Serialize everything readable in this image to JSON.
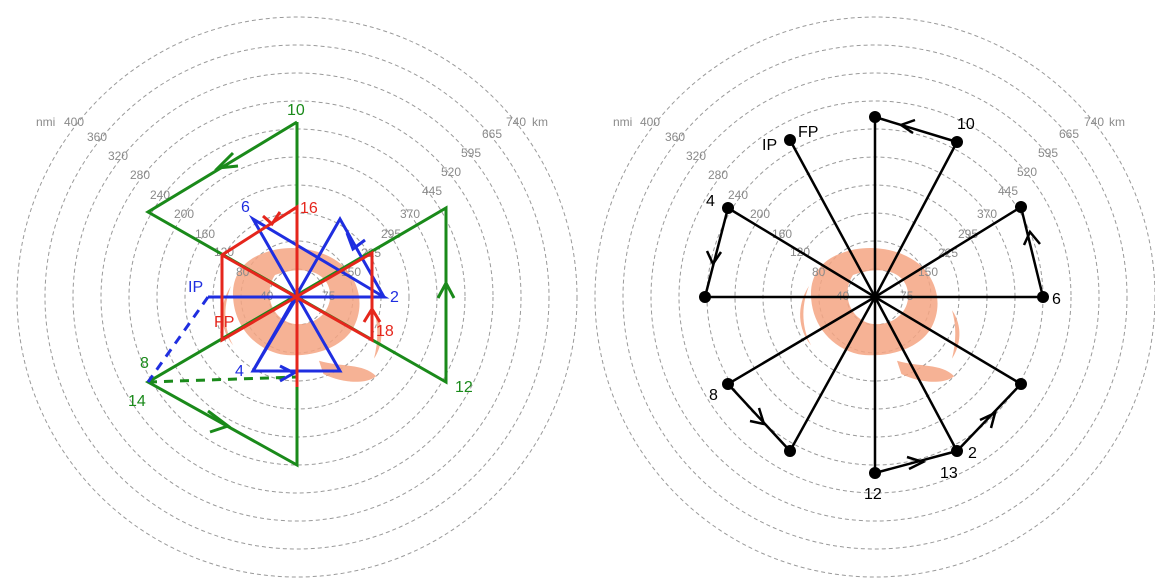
{
  "colors": {
    "green": "#1a8a1a",
    "blue": "#1f2ee0",
    "red": "#e5261c",
    "black": "#000000",
    "storm": "#f4a582",
    "ring": "#9a9a9a"
  },
  "left_panel": {
    "nmi_label": "nmi",
    "km_label": "km",
    "nmi_ticks": [
      "40",
      "80",
      "120",
      "160",
      "200",
      "240",
      "280",
      "320",
      "360",
      "400"
    ],
    "km_ticks": [
      "75",
      "150",
      "225",
      "295",
      "370",
      "445",
      "520",
      "595",
      "665",
      "740"
    ],
    "green_labels": {
      "l10": "10",
      "l12": "12",
      "l8": "8",
      "l14": "14"
    },
    "blue_labels": {
      "l6": "6",
      "l2": "2",
      "l4": "4",
      "ip": "IP"
    },
    "red_labels": {
      "l16": "16",
      "l18": "18",
      "fp": "FP"
    }
  },
  "right_panel": {
    "nmi_label": "nmi",
    "km_label": "km",
    "nmi_ticks": [
      "40",
      "80",
      "120",
      "160",
      "200",
      "240",
      "280",
      "320",
      "360",
      "400"
    ],
    "km_ticks": [
      "75",
      "150",
      "225",
      "295",
      "370",
      "445",
      "520",
      "595",
      "665",
      "740"
    ],
    "labels": {
      "ip": "IP",
      "fp": "FP",
      "l10": "10",
      "l4": "4",
      "l6": "6",
      "l8": "8",
      "l2": "2",
      "l13": "13",
      "l12": "12"
    }
  }
}
